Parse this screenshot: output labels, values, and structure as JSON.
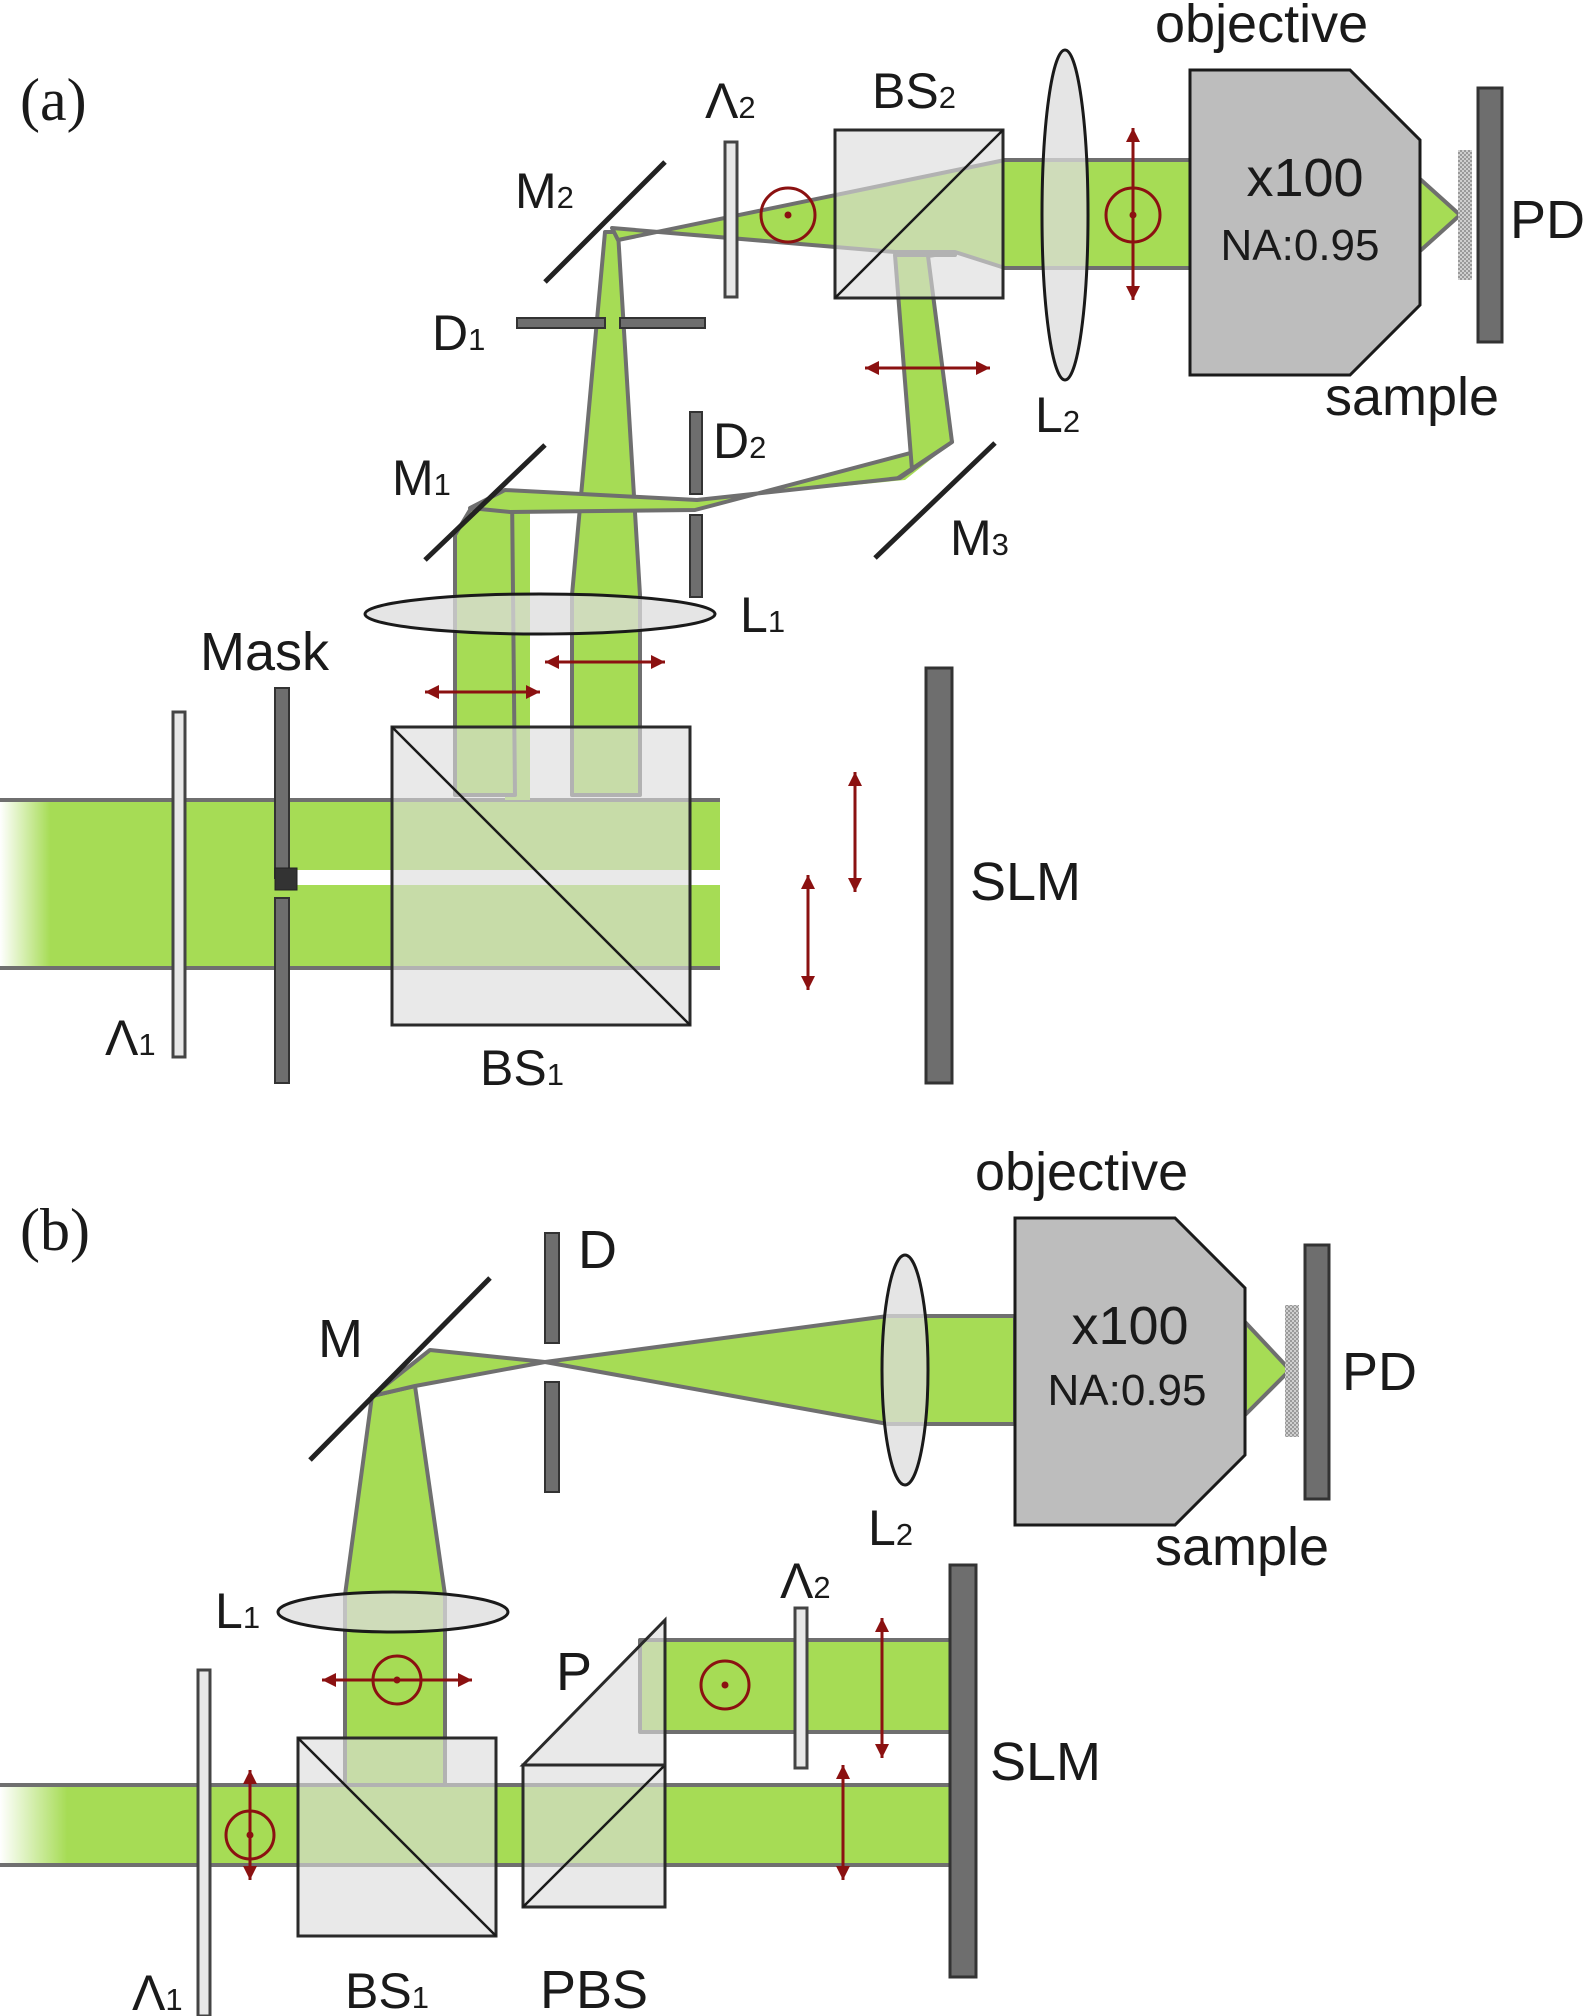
{
  "colors": {
    "beam": "#a6dc55",
    "beam_edge": "#6f6f6f",
    "optic_glass": "#dcdcdc",
    "optic_dark": "#6e6e6e",
    "objective_fill": "#bdbdbd",
    "polarization_arrow": "#8b1111",
    "label": "#1a1a1a"
  },
  "panel_a": {
    "label": "(a)",
    "waveplate_1": {
      "sym": "Λ",
      "sub": "1"
    },
    "waveplate_2": {
      "sym": "Λ",
      "sub": "2"
    },
    "beamsplitter_1": {
      "main": "BS",
      "sub": "1"
    },
    "beamsplitter_2": {
      "main": "BS",
      "sub": "2"
    },
    "mirror_1": {
      "main": "M",
      "sub": "1"
    },
    "mirror_2": {
      "main": "M",
      "sub": "2"
    },
    "mirror_3": {
      "main": "M",
      "sub": "3"
    },
    "diaphragm_1": {
      "main": "D",
      "sub": "1"
    },
    "diaphragm_2": {
      "main": "D",
      "sub": "2"
    },
    "lens_1": {
      "main": "L",
      "sub": "1"
    },
    "lens_2": {
      "main": "L",
      "sub": "2"
    },
    "mask": "Mask",
    "slm": "SLM",
    "objective": "objective",
    "magnification": "x100",
    "numerical_aperture": "NA:0.95",
    "sample": "sample",
    "detector": "PD"
  },
  "panel_b": {
    "label": "(b)",
    "waveplate_1": {
      "sym": "Λ",
      "sub": "1"
    },
    "waveplate_2": {
      "sym": "Λ",
      "sub": "2"
    },
    "beamsplitter_1": {
      "main": "BS",
      "sub": "1"
    },
    "polarizing_beamsplitter": "PBS",
    "prism": "P",
    "mirror": "M",
    "diaphragm": "D",
    "lens_1": {
      "main": "L",
      "sub": "1"
    },
    "lens_2": {
      "main": "L",
      "sub": "2"
    },
    "slm": "SLM",
    "objective": "objective",
    "magnification": "x100",
    "numerical_aperture": "NA:0.95",
    "sample": "sample",
    "detector": "PD"
  }
}
